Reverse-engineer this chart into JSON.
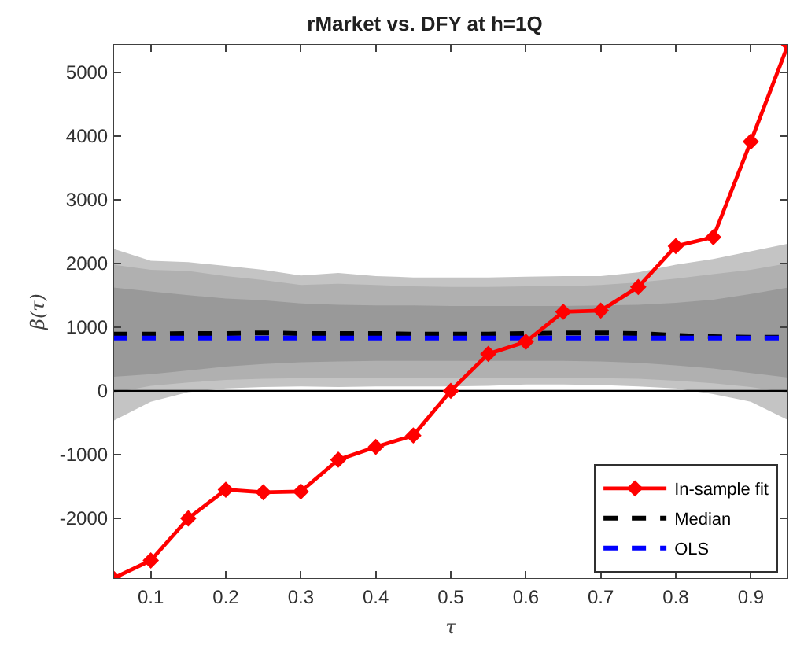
{
  "chart_data": {
    "type": "line",
    "title": "rMarket vs. DFY at h=1Q",
    "xlabel": "τ",
    "ylabel": "β(τ)",
    "x": [
      0.05,
      0.1,
      0.15,
      0.2,
      0.25,
      0.3,
      0.35,
      0.4,
      0.45,
      0.5,
      0.55,
      0.6,
      0.65,
      0.7,
      0.75,
      0.8,
      0.85,
      0.9,
      0.95
    ],
    "xlim": [
      0.05,
      0.95
    ],
    "xticks": [
      0.1,
      0.2,
      0.3,
      0.4,
      0.5,
      0.6,
      0.7,
      0.8,
      0.9
    ],
    "ylim": [
      -2950,
      5440
    ],
    "yticks": [
      -2000,
      -1000,
      0,
      1000,
      2000,
      3000,
      4000,
      5000
    ],
    "legend": "bottom right",
    "ref_lines": [
      {
        "axis": "y",
        "value": 0,
        "color": "#000000",
        "line_style": "solid"
      }
    ],
    "series": [
      {
        "name": "In-sample fit",
        "color": "#ff0000",
        "marker": "diamond",
        "line_style": "solid",
        "values": [
          -2940,
          -2660,
          -2000,
          -1550,
          -1590,
          -1580,
          -1080,
          -880,
          -700,
          0,
          580,
          770,
          1240,
          1260,
          1630,
          2270,
          2410,
          3910,
          5440
        ]
      },
      {
        "name": "Median",
        "color": "#000000",
        "marker": "none",
        "line_style": "dashed",
        "values": [
          890,
          890,
          900,
          900,
          910,
          900,
          900,
          900,
          890,
          890,
          890,
          900,
          910,
          910,
          900,
          870,
          850,
          840,
          840
        ]
      },
      {
        "name": "OLS",
        "color": "#0000ff",
        "marker": "none",
        "line_style": "dashed",
        "values": [
          830,
          830,
          830,
          830,
          830,
          830,
          830,
          830,
          830,
          830,
          830,
          830,
          830,
          830,
          830,
          830,
          830,
          830,
          830
        ]
      },
      {
        "color": "#c4c4c4",
        "values": [
          null,
          null,
          null,
          null,
          null,
          null,
          null,
          null,
          null,
          null,
          null,
          null,
          null,
          null,
          null,
          null,
          null,
          null,
          null
        ],
        "upper": [
          2230,
          2040,
          2020,
          1960,
          1900,
          1810,
          1850,
          1800,
          1780,
          1780,
          1780,
          1790,
          1800,
          1800,
          1860,
          1980,
          2070,
          2190,
          2310
        ],
        "lower": [
          -470,
          -170,
          -20,
          40,
          60,
          70,
          60,
          70,
          70,
          70,
          80,
          100,
          100,
          90,
          70,
          40,
          -50,
          -170,
          -460
        ]
      },
      {
        "color": "#b0b0b0",
        "values": [
          null,
          null,
          null,
          null,
          null,
          null,
          null,
          null,
          null,
          null,
          null,
          null,
          null,
          null,
          null,
          null,
          null,
          null,
          null
        ],
        "upper": [
          1980,
          1900,
          1880,
          1800,
          1740,
          1660,
          1680,
          1660,
          1640,
          1630,
          1630,
          1640,
          1640,
          1660,
          1700,
          1760,
          1830,
          1900,
          2000
        ],
        "lower": [
          -30,
          80,
          130,
          170,
          190,
          200,
          210,
          210,
          200,
          200,
          200,
          210,
          210,
          200,
          190,
          160,
          120,
          60,
          -30
        ]
      },
      {
        "color": "#999999",
        "values": [
          null,
          null,
          null,
          null,
          null,
          null,
          null,
          null,
          null,
          null,
          null,
          null,
          null,
          null,
          null,
          null,
          null,
          null,
          null
        ],
        "upper": [
          1620,
          1560,
          1500,
          1450,
          1420,
          1370,
          1350,
          1340,
          1340,
          1330,
          1330,
          1330,
          1330,
          1340,
          1350,
          1380,
          1430,
          1520,
          1620
        ],
        "lower": [
          220,
          260,
          320,
          380,
          420,
          450,
          460,
          470,
          470,
          470,
          470,
          470,
          470,
          460,
          440,
          400,
          350,
          280,
          210
        ]
      }
    ]
  }
}
